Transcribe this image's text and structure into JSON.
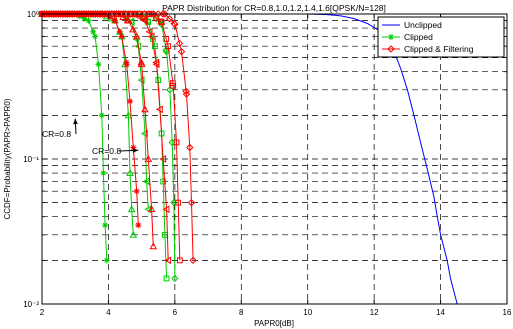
{
  "chart_data": {
    "type": "line",
    "title": "PAPR Distribution for CR=0.8,1.0,1.2,1.4,1.6[QPSK/N=128]",
    "xlabel": "PAPR0[dB]",
    "ylabel": "CCDF=Probability(PAPR>PAPR0)",
    "xlim": [
      2,
      16
    ],
    "ylim": [
      0.01,
      1
    ],
    "yscale": "log",
    "grid": true,
    "legend_position": "top-right",
    "x_ticks": [
      "2",
      "4",
      "6",
      "8",
      "10",
      "12",
      "14",
      "16"
    ],
    "y_ticks": [
      "10⁻²",
      "10⁻¹",
      "10⁰"
    ],
    "series": [
      {
        "name": "Unclipped",
        "color": "#0000ff",
        "marker": "none",
        "x": [
          2.0,
          8.0,
          10.0,
          10.6,
          11.0,
          11.4,
          11.8,
          12.1,
          12.4,
          12.6,
          12.8,
          13.0,
          13.2,
          13.4,
          13.6,
          13.8,
          13.9,
          14.0,
          14.2,
          14.3,
          14.5,
          16.0
        ],
        "y": [
          1.0,
          1.0,
          1.0,
          0.99,
          0.97,
          0.93,
          0.86,
          0.78,
          0.68,
          0.55,
          0.42,
          0.3,
          0.2,
          0.13,
          0.085,
          0.055,
          0.04,
          0.03,
          0.02,
          0.015,
          0.01,
          0.01
        ]
      },
      {
        "name": "Clipped",
        "color": "#00cc00",
        "marker": "star",
        "curves": [
          {
            "label": "CR=0.8",
            "marker": "asterisk",
            "x": [
              2.0,
              3.0,
              3.4,
              3.6,
              3.7,
              3.8,
              3.85,
              3.9,
              3.95
            ],
            "y": [
              1.0,
              1.0,
              0.9,
              0.7,
              0.45,
              0.2,
              0.08,
              0.035,
              0.02
            ]
          },
          {
            "label": "CR=1.0",
            "marker": "triangle",
            "x": [
              2.0,
              3.8,
              4.2,
              4.4,
              4.5,
              4.6,
              4.65,
              4.7,
              4.75
            ],
            "y": [
              1.0,
              1.0,
              0.9,
              0.7,
              0.45,
              0.2,
              0.08,
              0.045,
              0.03
            ]
          },
          {
            "label": "CR=1.2",
            "marker": "triangle-left",
            "x": [
              2.0,
              4.4,
              4.7,
              4.9,
              5.0,
              5.1,
              5.15,
              5.2
            ],
            "y": [
              1.0,
              1.0,
              0.88,
              0.6,
              0.35,
              0.15,
              0.07,
              0.045
            ]
          },
          {
            "label": "CR=1.4",
            "marker": "square",
            "x": [
              2.0,
              4.9,
              5.2,
              5.4,
              5.5,
              5.6,
              5.65,
              5.7,
              5.75
            ],
            "y": [
              1.0,
              1.0,
              0.88,
              0.6,
              0.35,
              0.15,
              0.07,
              0.03,
              0.015
            ]
          },
          {
            "label": "CR=1.6",
            "marker": "diamond",
            "x": [
              2.0,
              5.3,
              5.6,
              5.75,
              5.85,
              5.92,
              5.97,
              6.0
            ],
            "y": [
              1.0,
              1.0,
              0.85,
              0.55,
              0.3,
              0.13,
              0.05,
              0.015
            ]
          }
        ]
      },
      {
        "name": "Clipped & Filtering",
        "color": "#ff0000",
        "marker": "diamond",
        "curves": [
          {
            "label": "CR=0.8",
            "marker": "asterisk",
            "x": [
              2.0,
              3.9,
              4.2,
              4.4,
              4.55,
              4.65,
              4.75,
              4.85,
              4.9
            ],
            "y": [
              1.0,
              1.0,
              0.9,
              0.7,
              0.45,
              0.25,
              0.12,
              0.06,
              0.035
            ]
          },
          {
            "label": "CR=1.0",
            "marker": "triangle",
            "x": [
              2.0,
              4.3,
              4.6,
              4.85,
              5.0,
              5.1,
              5.2,
              5.3,
              5.35
            ],
            "y": [
              1.0,
              1.0,
              0.9,
              0.7,
              0.45,
              0.22,
              0.1,
              0.045,
              0.025
            ]
          },
          {
            "label": "CR=1.2",
            "marker": "triangle-left",
            "x": [
              2.0,
              4.8,
              5.1,
              5.3,
              5.45,
              5.55,
              5.65,
              5.75,
              5.8
            ],
            "y": [
              1.0,
              1.0,
              0.9,
              0.7,
              0.45,
              0.22,
              0.1,
              0.045,
              0.02
            ]
          },
          {
            "label": "CR=1.4",
            "marker": "square",
            "x": [
              2.0,
              5.3,
              5.6,
              5.8,
              5.95,
              6.05,
              6.1,
              6.15
            ],
            "y": [
              1.0,
              1.0,
              0.88,
              0.6,
              0.32,
              0.13,
              0.05,
              0.02
            ]
          },
          {
            "label": "CR=1.6",
            "marker": "diamond",
            "x": [
              2.0,
              5.7,
              6.0,
              6.2,
              6.35,
              6.45,
              6.5,
              6.55
            ],
            "y": [
              1.0,
              1.0,
              0.85,
              0.55,
              0.28,
              0.12,
              0.05,
              0.02
            ]
          }
        ]
      }
    ],
    "annotations": [
      {
        "text": "CR=0.8",
        "arrow_to_x": 3.0,
        "arrow_to_y": 0.19
      },
      {
        "text": "CR=0.8",
        "arrow_to_x": 4.9,
        "arrow_to_y": 0.115
      }
    ]
  }
}
